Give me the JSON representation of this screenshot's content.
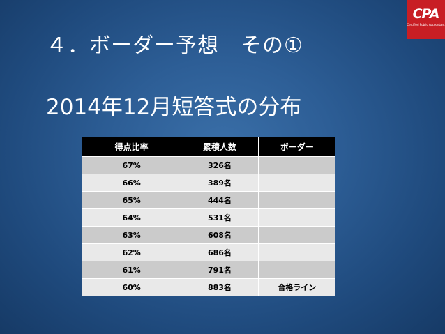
{
  "slide": {
    "title": "４．ボーダー予想　その①",
    "subtitle": "2014年12月短答式の分布"
  },
  "logo": {
    "mark": "CPA",
    "caption": "Certified Public Accountant",
    "color": "#c81e24"
  },
  "table": {
    "headers": [
      "得点比率",
      "累積人数",
      "ボーダー"
    ],
    "rows": [
      [
        "67%",
        "326名",
        ""
      ],
      [
        "66%",
        "389名",
        ""
      ],
      [
        "65%",
        "444名",
        ""
      ],
      [
        "64%",
        "531名",
        ""
      ],
      [
        "63%",
        "608名",
        ""
      ],
      [
        "62%",
        "686名",
        ""
      ],
      [
        "61%",
        "791名",
        ""
      ],
      [
        "60%",
        "883名",
        "合格ライン"
      ]
    ]
  }
}
